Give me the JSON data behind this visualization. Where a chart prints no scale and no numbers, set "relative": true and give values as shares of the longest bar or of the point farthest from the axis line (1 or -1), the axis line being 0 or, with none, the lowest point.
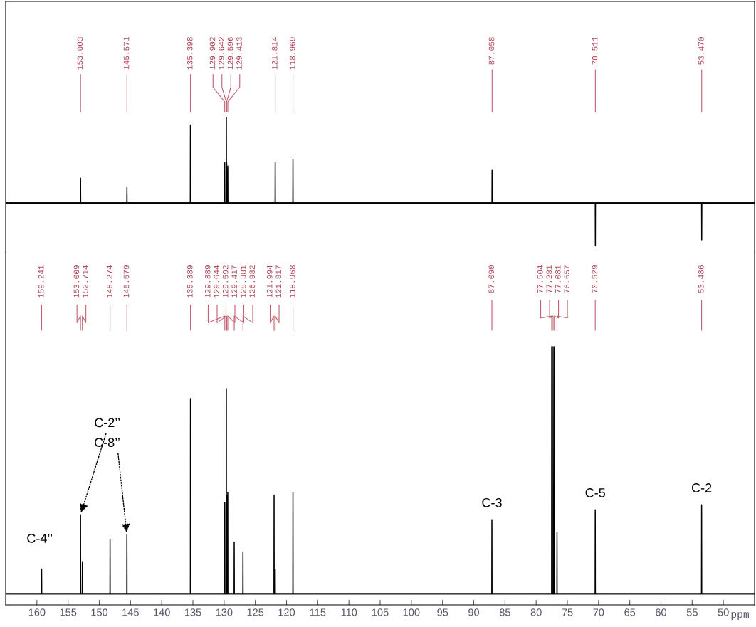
{
  "chart_data": [
    {
      "type": "line",
      "relative": true,
      "xlim": [
        165,
        45
      ],
      "tick_labels": false,
      "series": [
        {
          "color": "#000000",
          "x": [
            165,
            153.023,
            153.003,
            152.983,
            145.591,
            145.571,
            145.551,
            135.418,
            135.398,
            135.378,
            129.922,
            129.902,
            129.882,
            129.662,
            129.642,
            129.622,
            129.616,
            129.596,
            129.576,
            129.433,
            129.413,
            129.393,
            121.834,
            121.814,
            121.794,
            118.989,
            118.969,
            118.949,
            87.078,
            87.058,
            87.038,
            70.531,
            70.511,
            70.491,
            53.49,
            53.47,
            53.45,
            45
          ],
          "values": [
            0,
            0,
            0.29,
            0,
            0,
            0.18,
            0,
            0,
            0.91,
            0,
            0,
            0.47,
            0,
            0,
            1,
            0,
            0,
            0.47,
            0,
            0,
            0.43,
            0,
            0,
            0.47,
            0,
            0,
            0.51,
            0,
            0,
            0.38,
            0,
            0,
            -0.5,
            0,
            0,
            -0.43,
            0,
            0
          ]
        }
      ],
      "annotations": [
        {
          "text": "153.003",
          "x": 153.003
        },
        {
          "text": "145.571",
          "x": 145.571
        },
        {
          "text": "135.398",
          "x": 135.398
        },
        {
          "text": "129.902",
          "x": 129.902
        },
        {
          "text": "129.642",
          "x": 129.642
        },
        {
          "text": "129.596",
          "x": 129.596
        },
        {
          "text": "129.413",
          "x": 129.413
        },
        {
          "text": "121.814",
          "x": 121.814
        },
        {
          "text": "118.969",
          "x": 118.969
        },
        {
          "text": "87.058",
          "x": 87.058
        },
        {
          "text": "70.511",
          "x": 70.511
        },
        {
          "text": "53.470",
          "x": 53.47
        }
      ]
    },
    {
      "type": "line",
      "relative": true,
      "xlim": [
        165,
        45
      ],
      "xticks": [
        160,
        155,
        150,
        145,
        140,
        135,
        130,
        125,
        120,
        115,
        110,
        105,
        100,
        95,
        90,
        85,
        80,
        75,
        70,
        65,
        60,
        55,
        50
      ],
      "xlabel": "ppm",
      "tick_labels": "x",
      "series": [
        {
          "color": "#000000",
          "x": [
            165,
            159.261,
            159.241,
            159.221,
            153.029,
            153.009,
            152.989,
            152.734,
            152.714,
            152.694,
            148.294,
            148.274,
            148.254,
            145.599,
            145.579,
            145.559,
            135.409,
            135.389,
            135.369,
            129.909,
            129.889,
            129.869,
            129.664,
            129.644,
            129.624,
            129.612,
            129.592,
            129.572,
            129.437,
            129.417,
            129.397,
            128.401,
            128.381,
            128.361,
            127.002,
            126.982,
            126.962,
            122.014,
            121.994,
            121.974,
            121.837,
            121.817,
            121.797,
            118.988,
            118.968,
            118.948,
            87.11,
            87.09,
            87.07,
            77.524,
            77.504,
            77.484,
            77.301,
            77.281,
            77.261,
            77.101,
            77.081,
            77.061,
            76.677,
            76.657,
            76.637,
            70.549,
            70.529,
            70.509,
            53.506,
            53.486,
            53.466,
            45
          ],
          "values": [
            0,
            0,
            0.1,
            0,
            0,
            0.32,
            0,
            0,
            0.13,
            0,
            0,
            0.22,
            0,
            0,
            0.24,
            0,
            0,
            0.79,
            0,
            0,
            0.37,
            0,
            0,
            0.83,
            0,
            0,
            0.4,
            0,
            0,
            0.41,
            0,
            0,
            0.21,
            0,
            0,
            0.17,
            0,
            0,
            0.4,
            0,
            0,
            0.1,
            0,
            0,
            0.41,
            0,
            0,
            0.3,
            0,
            0,
            1,
            0,
            0,
            1,
            0,
            0,
            1,
            0,
            0,
            0.25,
            0,
            0,
            0.34,
            0,
            0,
            0.36,
            0,
            0
          ]
        }
      ],
      "annotations": [
        {
          "text": "159.241",
          "x": 159.241
        },
        {
          "text": "153.009",
          "x": 153.009
        },
        {
          "text": "152.714",
          "x": 152.714
        },
        {
          "text": "148.274",
          "x": 148.274
        },
        {
          "text": "145.579",
          "x": 145.579
        },
        {
          "text": "135.389",
          "x": 135.389
        },
        {
          "text": "129.889",
          "x": 129.889
        },
        {
          "text": "129.644",
          "x": 129.644
        },
        {
          "text": "129.592",
          "x": 129.592
        },
        {
          "text": "129.417",
          "x": 129.417
        },
        {
          "text": "128.381",
          "x": 128.381
        },
        {
          "text": "126.982",
          "x": 126.982
        },
        {
          "text": "121.994",
          "x": 121.994
        },
        {
          "text": "121.817",
          "x": 121.817
        },
        {
          "text": "118.968",
          "x": 118.968
        },
        {
          "text": "87.090",
          "x": 87.09
        },
        {
          "text": "77.504",
          "x": 77.504
        },
        {
          "text": "77.281",
          "x": 77.281
        },
        {
          "text": "77.081",
          "x": 77.081
        },
        {
          "text": "76.657",
          "x": 76.657
        },
        {
          "text": "70.529",
          "x": 70.529
        },
        {
          "text": "53.486",
          "x": 53.486
        },
        {
          "text": "C-4’’",
          "x": 159.241,
          "y": 0.1
        },
        {
          "text": "C-2’’",
          "x": 153.009,
          "y": 0.32
        },
        {
          "text": "C-8’’",
          "x": 145.579,
          "y": 0.24
        },
        {
          "text": "C-3",
          "x": 87.09,
          "y": 0.3
        },
        {
          "text": "C-5",
          "x": 70.529,
          "y": 0.34
        },
        {
          "text": "C-2",
          "x": 53.486,
          "y": 0.36
        }
      ]
    }
  ]
}
